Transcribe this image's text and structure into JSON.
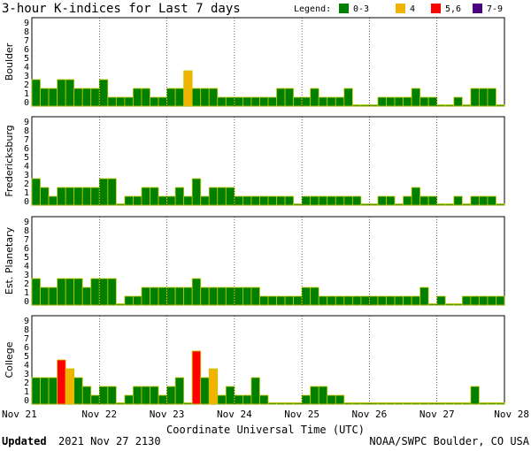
{
  "chart_data": {
    "type": "bar",
    "title": "3-hour K-indices for Last 7 days",
    "legend": {
      "label": "Legend:",
      "placement": "top-right",
      "entries": [
        {
          "label": "0-3",
          "color": "#008000"
        },
        {
          "label": "4",
          "color": "#f0b400"
        },
        {
          "label": "5,6",
          "color": "#ff0000"
        },
        {
          "label": "7-9",
          "color": "#4b0082"
        }
      ]
    },
    "xlabel": "Coordinate Universal Time (UTC)",
    "x_ticks": [
      "Nov 21",
      "Nov 22",
      "Nov 23",
      "Nov 24",
      "Nov 25",
      "Nov 26",
      "Nov 27",
      "Nov 28"
    ],
    "ylim": [
      0,
      9
    ],
    "y_ticks": [
      "0",
      "1",
      "2",
      "3",
      "4",
      "5",
      "6",
      "7",
      "8",
      "9"
    ],
    "bar_outline_color": "#c8c800",
    "panels": [
      {
        "name": "Boulder",
        "values": [
          3,
          2,
          2,
          3,
          3,
          2,
          2,
          2,
          3,
          1,
          1,
          1,
          2,
          2,
          1,
          1,
          2,
          2,
          4,
          2,
          2,
          2,
          1,
          1,
          1,
          1,
          1,
          1,
          1,
          2,
          2,
          1,
          1,
          2,
          1,
          1,
          1,
          2,
          0,
          0,
          0,
          1,
          1,
          1,
          1,
          2,
          1,
          1,
          0,
          0,
          1,
          0,
          2,
          2,
          2,
          0
        ]
      },
      {
        "name": "Fredericksburg",
        "values": [
          3,
          2,
          1,
          2,
          2,
          2,
          2,
          2,
          3,
          3,
          0,
          1,
          1,
          2,
          2,
          1,
          1,
          2,
          1,
          3,
          1,
          2,
          2,
          2,
          1,
          1,
          1,
          1,
          1,
          1,
          1,
          0,
          1,
          1,
          1,
          1,
          1,
          1,
          1,
          0,
          0,
          1,
          1,
          0,
          1,
          2,
          1,
          1,
          0,
          0,
          1,
          0,
          1,
          1,
          1,
          0
        ]
      },
      {
        "name": "Est. Planetary",
        "values": [
          3,
          2,
          2,
          3,
          3,
          3,
          2,
          3,
          3,
          3,
          0,
          1,
          1,
          2,
          2,
          2,
          2,
          2,
          2,
          3,
          2,
          2,
          2,
          2,
          2,
          2,
          2,
          1,
          1,
          1,
          1,
          1,
          2,
          2,
          1,
          1,
          1,
          1,
          1,
          1,
          1,
          1,
          1,
          1,
          1,
          1,
          2,
          0,
          1,
          0,
          0,
          1,
          1,
          1,
          1,
          1
        ]
      },
      {
        "name": "College",
        "values": [
          3,
          3,
          3,
          5,
          4,
          3,
          2,
          1,
          2,
          2,
          0,
          1,
          2,
          2,
          2,
          1,
          2,
          3,
          0,
          6,
          3,
          4,
          1,
          2,
          1,
          1,
          3,
          1,
          0,
          0,
          0,
          0,
          1,
          2,
          2,
          1,
          1,
          0,
          0,
          0,
          0,
          0,
          0,
          0,
          0,
          0,
          0,
          0,
          0,
          0,
          0,
          0,
          2,
          0,
          0,
          0
        ]
      }
    ]
  },
  "footer": {
    "updated_label": "Updated",
    "updated_value": "2021 Nov 27 2130",
    "source": "NOAA/SWPC Boulder, CO USA"
  }
}
